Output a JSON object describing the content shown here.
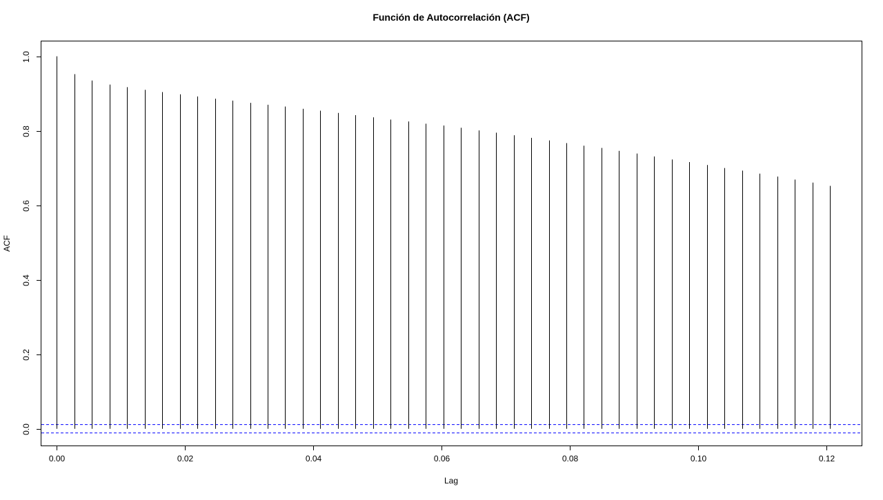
{
  "chart_data": {
    "type": "bar",
    "title": "Función de Autocorrelación (ACF)",
    "xlabel": "Lag",
    "ylabel": "ACF",
    "xlim": [
      -0.0024,
      0.1255
    ],
    "ylim": [
      -0.045,
      1.04
    ],
    "x_ticks": [
      "0.00",
      "0.02",
      "0.04",
      "0.06",
      "0.08",
      "0.10",
      "0.12"
    ],
    "y_ticks": [
      "0.0",
      "0.2",
      "0.4",
      "0.6",
      "0.8",
      "1.0"
    ],
    "grid": false,
    "legend": "none",
    "bar_color": "#000000",
    "confidence_band": {
      "upper": 0.0113,
      "lower": -0.0113,
      "color": "#0000ff",
      "style": "dashed"
    },
    "series": [
      {
        "lags": [
          0.0,
          0.00274,
          0.00548,
          0.00822,
          0.01096,
          0.0137,
          0.01644,
          0.01918,
          0.02192,
          0.02466,
          0.0274,
          0.03014,
          0.03288,
          0.03562,
          0.03836,
          0.0411,
          0.04384,
          0.04658,
          0.04932,
          0.05206,
          0.0548,
          0.05754,
          0.06028,
          0.06302,
          0.06576,
          0.0685,
          0.07124,
          0.07398,
          0.07672,
          0.07946,
          0.0822,
          0.08494,
          0.08768,
          0.09042,
          0.09316,
          0.0959,
          0.09864,
          0.10138,
          0.10412,
          0.10686,
          0.1096,
          0.11234,
          0.11508,
          0.11782,
          0.12056
        ],
        "values": [
          1.0,
          0.952,
          0.935,
          0.924,
          0.917,
          0.91,
          0.904,
          0.898,
          0.892,
          0.886,
          0.881,
          0.875,
          0.87,
          0.865,
          0.859,
          0.854,
          0.848,
          0.842,
          0.836,
          0.83,
          0.825,
          0.819,
          0.814,
          0.808,
          0.801,
          0.795,
          0.788,
          0.781,
          0.774,
          0.767,
          0.76,
          0.754,
          0.746,
          0.739,
          0.731,
          0.723,
          0.716,
          0.708,
          0.7,
          0.693,
          0.685,
          0.677,
          0.669,
          0.661,
          0.652
        ]
      }
    ]
  }
}
